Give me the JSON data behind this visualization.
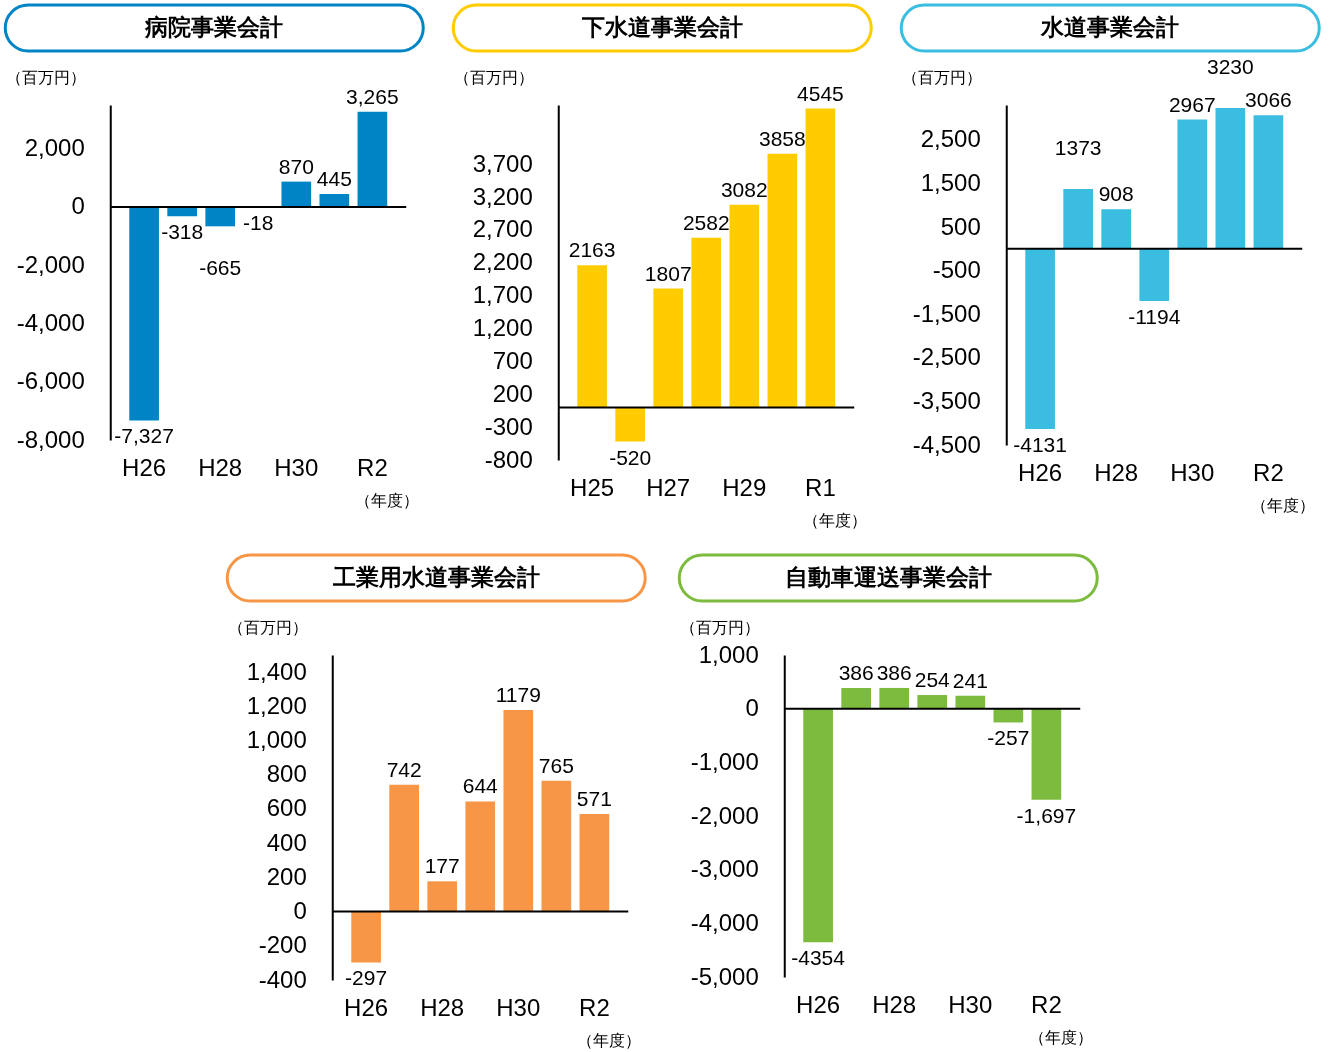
{
  "chart_data": [
    {
      "type": "bar",
      "title": "病院事業会計",
      "ylabel": "（百万円）",
      "xlabel": "（年度）",
      "categories": [
        "H26",
        null,
        "H28",
        null,
        "H30",
        null,
        "R2"
      ],
      "values": [
        -7327,
        -318,
        -665,
        -18,
        870,
        445,
        3265
      ],
      "value_labels": [
        "-7,327",
        "-318",
        "-665",
        "-18",
        "870",
        "445",
        "3,265"
      ],
      "color": "#0084c6",
      "ylim": [
        -8000,
        3500
      ],
      "yticks": [
        {
          "value": -8000,
          "label": "-8,000"
        },
        {
          "value": -6000,
          "label": "-6,000"
        },
        {
          "value": -4000,
          "label": "-4,000"
        },
        {
          "value": -2000,
          "label": "-2,000"
        },
        0,
        {
          "value": 2000,
          "label": "2,000"
        }
      ]
    },
    {
      "type": "bar",
      "title": "下水道事業会計",
      "ylabel": "（百万円）",
      "xlabel": "（年度）",
      "categories": [
        "H25",
        null,
        "H27",
        null,
        "H29",
        null,
        "R1"
      ],
      "values": [
        2163,
        -520,
        1807,
        2582,
        3082,
        3858,
        4545
      ],
      "value_labels": [
        "2163",
        "-520",
        "1807",
        "2582",
        "3082",
        "3858",
        "4545"
      ],
      "color": "#ffcc00",
      "ylim": [
        -800,
        4600
      ],
      "yticks": [
        -800,
        -300,
        200,
        700,
        {
          "value": 1200,
          "label": "1,200"
        },
        {
          "value": 1700,
          "label": "1,700"
        },
        {
          "value": 2200,
          "label": "2,200"
        },
        {
          "value": 2700,
          "label": "2,700"
        },
        {
          "value": 3200,
          "label": "3,200"
        },
        {
          "value": 3700,
          "label": "3,700"
        }
      ]
    },
    {
      "type": "bar",
      "title": "水道事業会計",
      "ylabel": "（百万円）",
      "xlabel": "（年度）",
      "categories": [
        "H26",
        null,
        "H28",
        null,
        "H30",
        null,
        "R2"
      ],
      "values": [
        -4131,
        1373,
        908,
        -1194,
        2967,
        3230,
        3066
      ],
      "value_labels": [
        "-4131",
        "1373",
        "908",
        "-1194",
        "2967",
        "3230",
        "3066"
      ],
      "color": "#3bbde2",
      "ylim": [
        -4500,
        3300
      ],
      "yticks": [
        {
          "value": -4500,
          "label": "-4,500"
        },
        {
          "value": -3500,
          "label": "-3,500"
        },
        {
          "value": -2500,
          "label": "-2,500"
        },
        {
          "value": -1500,
          "label": "-1,500"
        },
        -500,
        500,
        {
          "value": 1500,
          "label": "1,500"
        },
        {
          "value": 2500,
          "label": "2,500"
        }
      ]
    },
    {
      "type": "bar",
      "title": "工業用水道事業会計",
      "ylabel": "（百万円）",
      "xlabel": "（年度）",
      "categories": [
        "H26",
        null,
        "H28",
        null,
        "H30",
        null,
        "R2"
      ],
      "values": [
        -297,
        742,
        177,
        644,
        1179,
        765,
        571
      ],
      "value_labels": [
        "-297",
        "742",
        "177",
        "644",
        "1179",
        "765",
        "571"
      ],
      "color": "#f79646",
      "ylim": [
        -400,
        1500
      ],
      "yticks": [
        -400,
        -200,
        0,
        200,
        400,
        600,
        800,
        {
          "value": 1000,
          "label": "1,000"
        },
        {
          "value": 1200,
          "label": "1,200"
        },
        {
          "value": 1400,
          "label": "1,400"
        }
      ]
    },
    {
      "type": "bar",
      "title": "自動車運送事業会計",
      "ylabel": "（百万円）",
      "xlabel": "（年度）",
      "categories": [
        "H26",
        null,
        "H28",
        null,
        "H30",
        null,
        "R2"
      ],
      "values": [
        -4354,
        386,
        386,
        254,
        241,
        -257,
        -1697
      ],
      "value_labels": [
        "-4354",
        "386",
        "386",
        "254",
        "241",
        "-257",
        "-1,697"
      ],
      "color": "#7cbb3e",
      "ylim": [
        -5000,
        1000
      ],
      "yticks": [
        {
          "value": -5000,
          "label": "-5,000"
        },
        {
          "value": -4000,
          "label": "-4,000"
        },
        {
          "value": -3000,
          "label": "-3,000"
        },
        {
          "value": -2000,
          "label": "-2,000"
        },
        {
          "value": -1000,
          "label": "-1,000"
        },
        0,
        {
          "value": 1000,
          "label": "1,000"
        }
      ]
    }
  ]
}
